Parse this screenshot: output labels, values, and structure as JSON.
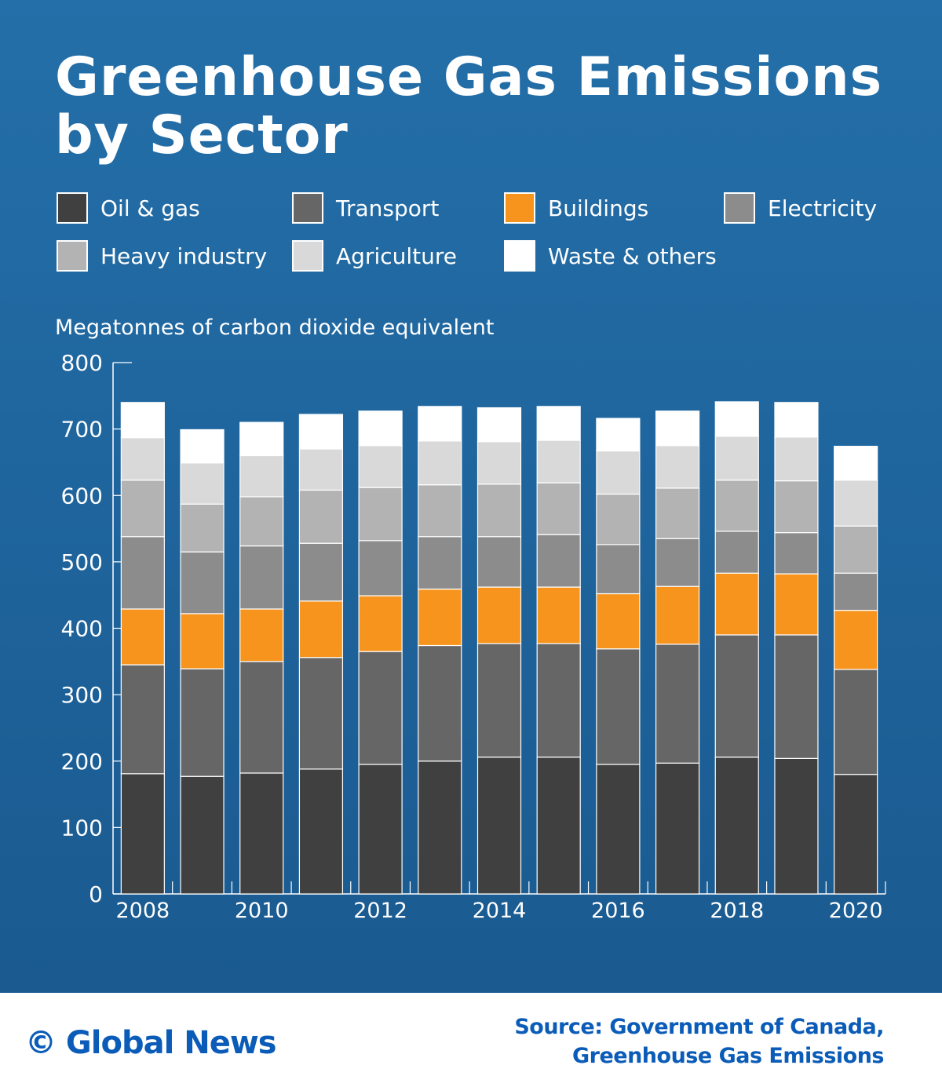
{
  "title_line1": "Greenhouse Gas Emissions",
  "title_line2": "by Sector",
  "footer": {
    "logo": "© Global News",
    "source_line1": "Source: Government of Canada,",
    "source_line2": "Greenhouse Gas Emissions"
  },
  "chart_data": {
    "type": "bar",
    "stacked": true,
    "ylabel": "Megatonnes of carbon dioxide equivalent",
    "ylim": [
      0,
      800
    ],
    "yticks": [
      0,
      100,
      200,
      300,
      400,
      500,
      600,
      700,
      800
    ],
    "categories": [
      "2008",
      "2009",
      "2010",
      "2011",
      "2012",
      "2013",
      "2014",
      "2015",
      "2016",
      "2017",
      "2018",
      "2019",
      "2020"
    ],
    "xtick_labels": [
      "2008",
      "",
      "2010",
      "",
      "2012",
      "",
      "2014",
      "",
      "2016",
      "",
      "2018",
      "",
      "2020"
    ],
    "legend": "top",
    "series": [
      {
        "name": "Oil & gas",
        "color": "#404040",
        "values": [
          181,
          177,
          182,
          188,
          195,
          200,
          206,
          206,
          195,
          197,
          206,
          204,
          180
        ]
      },
      {
        "name": "Transport",
        "color": "#666666",
        "values": [
          164,
          162,
          168,
          168,
          170,
          174,
          171,
          171,
          174,
          179,
          184,
          186,
          158
        ]
      },
      {
        "name": "Buildings",
        "color": "#f7941d",
        "values": [
          84,
          83,
          79,
          85,
          84,
          85,
          85,
          85,
          83,
          87,
          93,
          92,
          89
        ]
      },
      {
        "name": "Electricity",
        "color": "#8c8c8c",
        "values": [
          109,
          93,
          95,
          87,
          83,
          79,
          76,
          79,
          74,
          72,
          63,
          62,
          56
        ]
      },
      {
        "name": "Heavy industry",
        "color": "#b3b3b3",
        "values": [
          85,
          72,
          74,
          80,
          80,
          78,
          79,
          78,
          76,
          76,
          77,
          78,
          71
        ]
      },
      {
        "name": "Agriculture",
        "color": "#d9d9d9",
        "values": [
          64,
          62,
          62,
          62,
          63,
          66,
          64,
          64,
          65,
          64,
          66,
          66,
          69
        ]
      },
      {
        "name": "Waste & others",
        "color": "#ffffff",
        "values": [
          53,
          50,
          50,
          52,
          52,
          52,
          51,
          51,
          49,
          52,
          52,
          52,
          51
        ]
      }
    ]
  }
}
